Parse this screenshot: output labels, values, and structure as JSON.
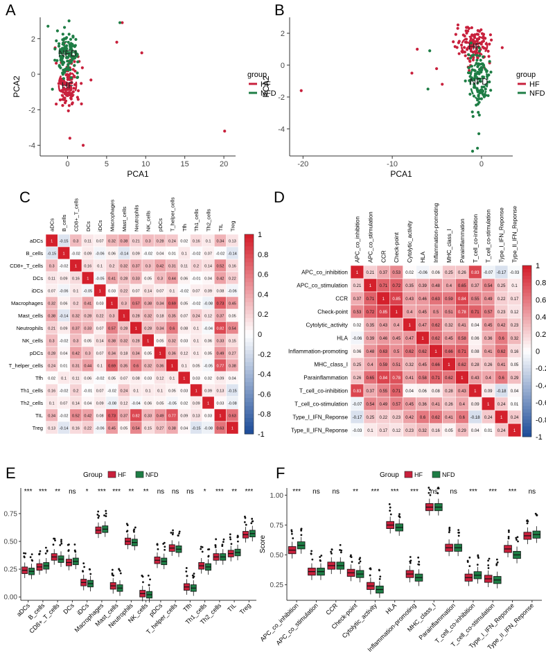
{
  "colors": {
    "hf": "#c8203c",
    "nfd": "#1e7d45",
    "high": "#d4202c",
    "low": "#1f4e9a",
    "mid": "#ffffff"
  },
  "chart_data": [
    {
      "id": "A",
      "panel_label": "A",
      "type": "scatter",
      "xlabel": "PCA1",
      "ylabel": "PCA2",
      "xticks": [
        0,
        5,
        10,
        15,
        20
      ],
      "yticks": [
        -4,
        -2,
        0,
        2
      ],
      "xlim": [
        -3.5,
        21.5
      ],
      "ylim": [
        -4.6,
        3.2
      ],
      "legend_title": "group",
      "legend": [
        "HF",
        "NFD"
      ],
      "centroid_labels": [
        "NFD",
        "HF"
      ],
      "series": [
        {
          "name": "HF",
          "center": [
            0,
            -0.6
          ],
          "spread": [
            1.4,
            1.1
          ],
          "n": 120,
          "extra": [
            [
              20.1,
              -3.2
            ],
            [
              9.5,
              1.2
            ],
            [
              6.3,
              1.8
            ],
            [
              7.0,
              2.9
            ],
            [
              2.0,
              -4.0
            ],
            [
              0.3,
              -3.6
            ]
          ]
        },
        {
          "name": "NFD",
          "center": [
            0,
            1.2
          ],
          "spread": [
            1.3,
            0.9
          ],
          "n": 120,
          "extra": [
            [
              6.7,
              2.9
            ],
            [
              -2.5,
              2.7
            ]
          ]
        }
      ]
    },
    {
      "id": "B",
      "panel_label": "B",
      "type": "scatter",
      "xlabel": "PCA1",
      "ylabel": "PCA2",
      "xticks": [
        -20,
        -10,
        0
      ],
      "yticks": [
        -4,
        -2,
        0,
        2
      ],
      "xlim": [
        -21.5,
        3.5
      ],
      "ylim": [
        -5.7,
        3.0
      ],
      "legend_title": "group",
      "legend": [
        "HF",
        "NFD"
      ],
      "centroid_labels": [
        "HF",
        "NFD"
      ],
      "series": [
        {
          "name": "HF",
          "center": [
            -0.8,
            1.2
          ],
          "spread": [
            1.8,
            0.9
          ],
          "n": 120,
          "extra": [
            [
              -20.2,
              -1.6
            ],
            [
              -7.2,
              1.0
            ],
            [
              -7.8,
              -0.5
            ],
            [
              -4.4,
              -1.2
            ]
          ]
        },
        {
          "name": "NFD",
          "center": [
            -0.3,
            -1.0
          ],
          "spread": [
            1.2,
            1.6
          ],
          "n": 120,
          "extra": [
            [
              -6.0,
              -1.5
            ],
            [
              -5.8,
              0.9
            ],
            [
              -1.0,
              -5.4
            ]
          ]
        }
      ]
    },
    {
      "id": "C",
      "panel_label": "C",
      "type": "heatmap",
      "labels": [
        "aDCs",
        "B_cells",
        "CD8+_T_cells",
        "DCs",
        "iDCs",
        "Macrophages",
        "Mast_cells",
        "Neutrophils",
        "NK_cells",
        "pDCs",
        "T_helper_cells",
        "Tfh",
        "Th1_cells",
        "Th2_cells",
        "TIL",
        "Treg"
      ],
      "colorbar_ticks": [
        "1",
        "0.8",
        "0.6",
        "0.4",
        "0.2",
        "0",
        "-0.2",
        "-0.4",
        "-0.6",
        "-0.8",
        "-1"
      ],
      "matrix": [
        [
          1,
          -0.15,
          0.3,
          0.11,
          0.07,
          0.32,
          0.38,
          0.21,
          0.3,
          0.28,
          0.24,
          0.02,
          0.16,
          0.1,
          0.34,
          0.13
        ],
        [
          -0.15,
          1,
          -0.02,
          0.09,
          -0.06,
          0.06,
          -0.14,
          0.09,
          -0.02,
          0.04,
          0.01,
          0.1,
          -0.02,
          0.07,
          -0.02,
          -0.14
        ],
        [
          0.3,
          -0.02,
          1,
          0.16,
          0.1,
          0.2,
          0.32,
          0.37,
          0.3,
          0.42,
          0.31,
          0.11,
          0.2,
          0.14,
          0.52,
          0.16
        ],
        [
          0.11,
          0.09,
          0.16,
          1,
          -0.05,
          0.41,
          0.28,
          0.33,
          0.05,
          0.3,
          0.44,
          0.06,
          -0.01,
          0.04,
          0.42,
          0.22
        ],
        [
          0.07,
          -0.06,
          0.1,
          -0.05,
          1,
          0.03,
          0.22,
          0.07,
          0.14,
          0.07,
          0.1,
          -0.02,
          0.07,
          0.09,
          0.08,
          -0.06
        ],
        [
          0.32,
          0.06,
          0.2,
          0.41,
          0.03,
          1,
          0.3,
          0.57,
          0.38,
          0.34,
          0.69,
          0.05,
          -0.02,
          -0.08,
          0.73,
          0.45
        ],
        [
          0.38,
          -0.14,
          0.32,
          0.28,
          0.22,
          0.3,
          1,
          0.28,
          0.32,
          0.18,
          0.35,
          0.07,
          0.24,
          0.12,
          0.37,
          0.05
        ],
        [
          0.21,
          0.09,
          0.37,
          0.33,
          0.07,
          0.57,
          0.28,
          1,
          0.28,
          0.34,
          0.6,
          0.08,
          0.1,
          -0.04,
          0.82,
          0.54
        ],
        [
          0.3,
          -0.02,
          0.3,
          0.05,
          0.14,
          0.38,
          0.32,
          0.28,
          1,
          0.05,
          0.32,
          0.03,
          0.1,
          0.06,
          0.33,
          0.15
        ],
        [
          0.28,
          0.04,
          0.42,
          0.3,
          0.07,
          0.34,
          0.18,
          0.34,
          0.05,
          1,
          0.36,
          0.12,
          0.1,
          0.05,
          0.49,
          0.27
        ],
        [
          0.24,
          0.01,
          0.31,
          0.44,
          0.1,
          0.69,
          0.35,
          0.6,
          0.32,
          0.36,
          1,
          0.1,
          0.05,
          -0.05,
          0.77,
          0.38
        ],
        [
          0.02,
          0.1,
          0.11,
          0.06,
          -0.02,
          0.05,
          0.07,
          0.08,
          0.03,
          0.12,
          0.1,
          1,
          0.03,
          0.02,
          0.09,
          0.04
        ],
        [
          0.16,
          -0.02,
          0.2,
          -0.01,
          0.07,
          -0.02,
          0.24,
          0.1,
          0.1,
          0.1,
          0.05,
          0.03,
          1,
          0.09,
          0.13,
          -0.15
        ],
        [
          0.1,
          0.07,
          0.14,
          0.04,
          0.09,
          -0.08,
          0.12,
          -0.04,
          0.06,
          0.05,
          -0.05,
          0.02,
          0.09,
          1,
          0.03,
          -0.08
        ],
        [
          0.34,
          -0.02,
          0.52,
          0.42,
          0.08,
          0.73,
          0.37,
          0.82,
          0.33,
          0.49,
          0.77,
          0.09,
          0.13,
          0.03,
          1,
          0.63
        ],
        [
          0.13,
          -0.14,
          0.16,
          0.22,
          -0.06,
          0.45,
          0.05,
          0.54,
          0.15,
          0.27,
          0.38,
          0.04,
          -0.15,
          -0.08,
          0.63,
          1
        ]
      ]
    },
    {
      "id": "D",
      "panel_label": "D",
      "type": "heatmap",
      "labels": [
        "APC_co_inhibition",
        "APC_co_stimulation",
        "CCR",
        "Check-point",
        "Cytolytic_activity",
        "HLA",
        "Inflammation-promoting",
        "MHC_class_I",
        "Parainflammation",
        "T_cell_co-inhibition",
        "T_cell_co-stimulation",
        "Type_I_IFN_Reponse",
        "Type_II_IFN_Reponse"
      ],
      "colorbar_ticks": [
        "1",
        "0.8",
        "0.6",
        "0.4",
        "0.2",
        "0",
        "-0.2",
        "-0.4",
        "-0.6",
        "-0.8",
        "-1"
      ],
      "matrix": [
        [
          1,
          0.21,
          0.37,
          0.53,
          0.02,
          -0.06,
          0.06,
          0.25,
          0.26,
          0.83,
          -0.07,
          -0.17,
          -0.03
        ],
        [
          0.21,
          1,
          0.71,
          0.72,
          0.35,
          0.39,
          0.48,
          0.4,
          0.65,
          0.37,
          0.54,
          0.25,
          0.1
        ],
        [
          0.37,
          0.71,
          1,
          0.85,
          0.43,
          0.46,
          0.63,
          0.59,
          0.84,
          0.55,
          0.49,
          0.22,
          0.17
        ],
        [
          0.53,
          0.72,
          0.85,
          1,
          0.4,
          0.45,
          0.5,
          0.51,
          0.78,
          0.71,
          0.57,
          0.23,
          0.12
        ],
        [
          0.02,
          0.35,
          0.43,
          0.4,
          1,
          0.47,
          0.62,
          0.32,
          0.41,
          0.04,
          0.45,
          0.42,
          0.23
        ],
        [
          -0.06,
          0.39,
          0.46,
          0.45,
          0.47,
          1,
          0.62,
          0.45,
          0.58,
          0.06,
          0.36,
          0.6,
          0.32
        ],
        [
          0.06,
          0.48,
          0.63,
          0.5,
          0.62,
          0.62,
          1,
          0.66,
          0.71,
          0.08,
          0.41,
          0.62,
          0.16
        ],
        [
          0.25,
          0.4,
          0.59,
          0.51,
          0.32,
          0.45,
          0.66,
          1,
          0.62,
          0.28,
          0.26,
          0.41,
          0.05
        ],
        [
          0.26,
          0.65,
          0.84,
          0.78,
          0.41,
          0.58,
          0.71,
          0.62,
          1,
          0.43,
          0.4,
          0.6,
          0.29
        ],
        [
          0.83,
          0.37,
          0.55,
          0.71,
          0.04,
          0.06,
          0.08,
          0.28,
          0.43,
          1,
          0.09,
          -0.18,
          0.04
        ],
        [
          -0.07,
          0.54,
          0.49,
          0.57,
          0.45,
          0.36,
          0.41,
          0.26,
          0.4,
          0.09,
          1,
          0.24,
          0.01
        ],
        [
          -0.17,
          0.25,
          0.22,
          0.23,
          0.42,
          0.6,
          0.62,
          0.41,
          0.6,
          -0.18,
          0.24,
          1,
          0.24
        ],
        [
          -0.03,
          0.1,
          0.17,
          0.12,
          0.23,
          0.32,
          0.16,
          0.05,
          0.29,
          0.04,
          0.01,
          0.24,
          1
        ]
      ]
    },
    {
      "id": "E",
      "panel_label": "E",
      "type": "box",
      "ylabel": "Score",
      "yticks": [
        "0.00",
        "0.25",
        "0.50",
        "0.75"
      ],
      "ylim": [
        -0.03,
        0.98
      ],
      "legend_title": "Group",
      "legend": [
        "HF",
        "NFD"
      ],
      "categories": [
        "aDCs",
        "B_cells",
        "CD8+_T_cells",
        "DCs",
        "iDCs",
        "Macrophages",
        "Mast_cells",
        "Neutrophils",
        "NK_cells",
        "pDCs",
        "T_helper_cells",
        "Tfh",
        "Th1_cells",
        "Th2_cells",
        "TIL",
        "Treg"
      ],
      "significance": [
        "***",
        "***",
        "**",
        "ns",
        "*",
        "***",
        "***",
        "**",
        "**",
        "ns",
        "ns",
        "ns",
        "*",
        "***",
        "**",
        "***"
      ],
      "series": [
        {
          "name": "HF",
          "median": [
            0.24,
            0.27,
            0.36,
            0.31,
            0.13,
            0.6,
            0.1,
            0.5,
            0.03,
            0.33,
            0.44,
            0.09,
            0.28,
            0.36,
            0.39,
            0.56
          ]
        },
        {
          "name": "NFD",
          "median": [
            0.23,
            0.28,
            0.34,
            0.32,
            0.12,
            0.61,
            0.08,
            0.49,
            0.02,
            0.32,
            0.43,
            0.08,
            0.27,
            0.36,
            0.4,
            0.57
          ]
        }
      ]
    },
    {
      "id": "F",
      "panel_label": "F",
      "type": "box",
      "ylabel": "Score",
      "yticks": [
        "0.25",
        "0.50",
        "0.75",
        "1.00"
      ],
      "ylim": [
        0.12,
        1.06
      ],
      "legend_title": "Group",
      "legend": [
        "HF",
        "NFD"
      ],
      "categories": [
        "APC_co_inhibition",
        "APC_co_stimulation",
        "CCR",
        "Check-point",
        "Cytolytic_activity",
        "HLA",
        "Inflammation-promoting",
        "MHC_class_I",
        "Parainflammation",
        "T_cell_co-inhibition",
        "T_cell_co-stimulation",
        "Type_I_IFN_Reponse",
        "Type_II_IFN_Reponse"
      ],
      "significance": [
        "***",
        "ns",
        "ns",
        "**",
        "***",
        "***",
        "***",
        "ns",
        "ns",
        "***",
        "***",
        "***",
        "ns"
      ],
      "series": [
        {
          "name": "HF",
          "median": [
            0.54,
            0.36,
            0.41,
            0.35,
            0.24,
            0.75,
            0.34,
            0.9,
            0.56,
            0.31,
            0.3,
            0.55,
            0.66
          ]
        },
        {
          "name": "NFD",
          "median": [
            0.58,
            0.36,
            0.41,
            0.34,
            0.21,
            0.73,
            0.31,
            0.9,
            0.56,
            0.33,
            0.29,
            0.5,
            0.67
          ]
        }
      ]
    }
  ]
}
